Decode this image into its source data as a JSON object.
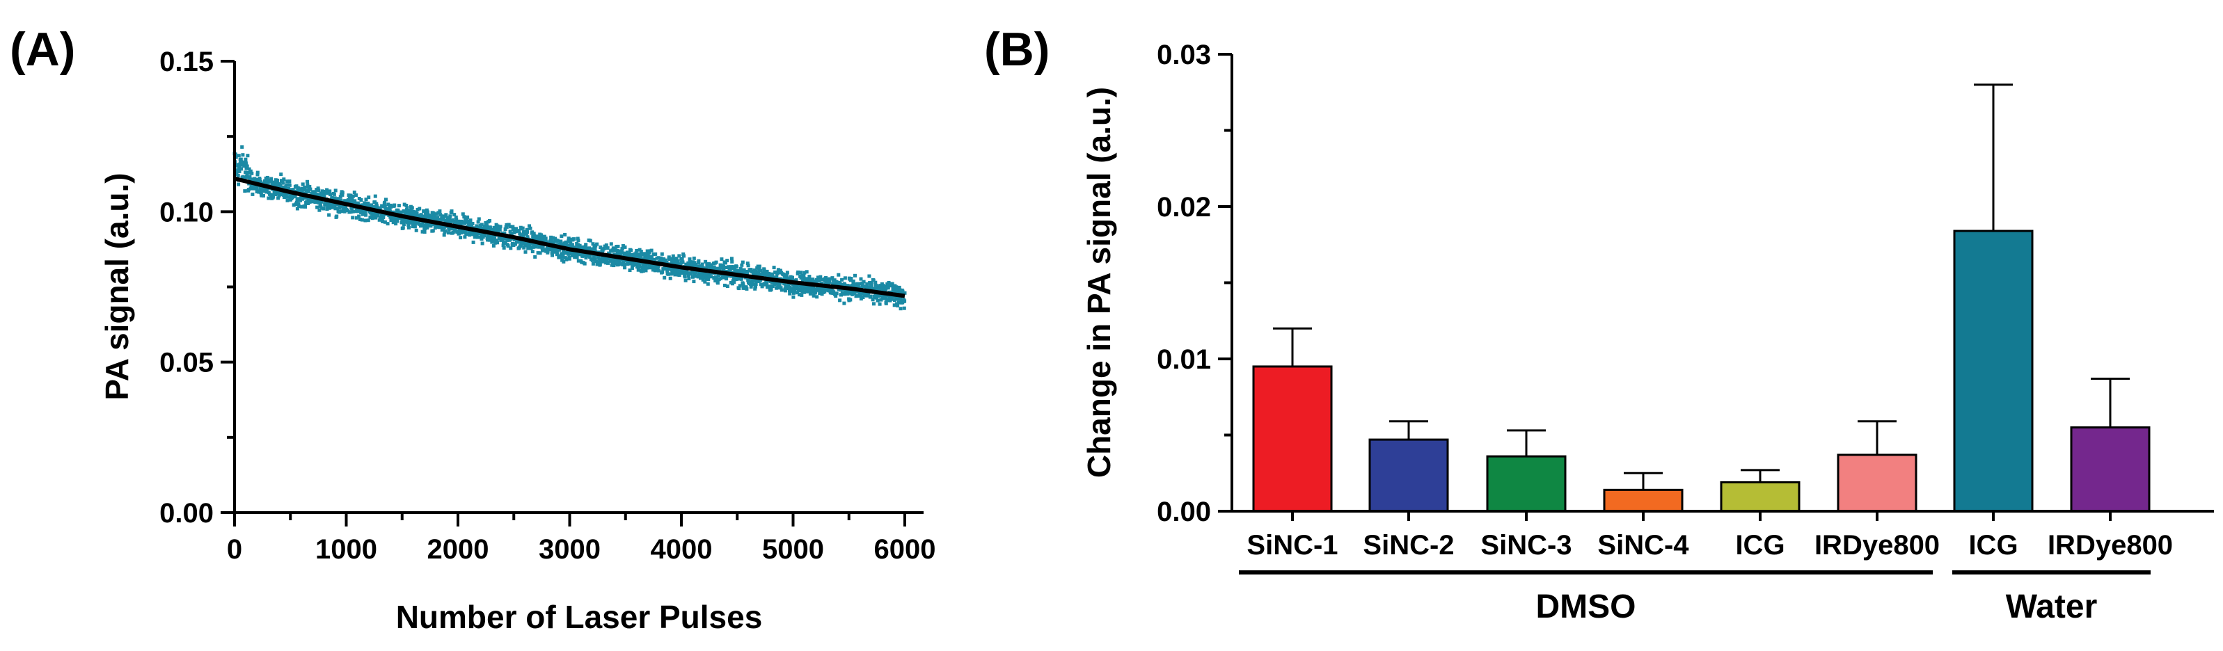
{
  "chart_data": [
    {
      "panel_label": "(A)",
      "type": "scatter",
      "xlabel": "Number of Laser Pulses",
      "ylabel": "PA signal (a.u.)",
      "xlim": [
        0,
        6000
      ],
      "ylim": [
        0.0,
        0.15
      ],
      "x_ticks": [
        "0",
        "1000",
        "2000",
        "3000",
        "4000",
        "5000",
        "6000"
      ],
      "y_ticks": [
        "0.00",
        "0.05",
        "0.10",
        "0.15"
      ],
      "point_color": "#1b8aa5",
      "fit_color": "#000000",
      "fit": {
        "model": "exponential decay",
        "x": [
          0,
          500,
          1000,
          1500,
          2000,
          2500,
          3000,
          3500,
          4000,
          4500,
          5000,
          5500,
          6000
        ],
        "y": [
          0.111,
          0.1065,
          0.1025,
          0.0985,
          0.095,
          0.0915,
          0.0875,
          0.0845,
          0.0815,
          0.079,
          0.0765,
          0.0745,
          0.072
        ]
      },
      "scatter": {
        "n_points": 6000,
        "spread": 0.0035
      }
    },
    {
      "panel_label": "(B)",
      "type": "bar",
      "ylabel": "Change in PA signal (a.u.)",
      "ylim": [
        0.0,
        0.03
      ],
      "y_ticks": [
        "0.00",
        "0.01",
        "0.02",
        "0.03"
      ],
      "categories": [
        "SiNC-1",
        "SiNC-2",
        "SiNC-3",
        "SiNC-4",
        "ICG",
        "IRDye800",
        "ICG",
        "IRDye800"
      ],
      "values": [
        0.0095,
        0.0047,
        0.0036,
        0.0014,
        0.0019,
        0.0037,
        0.0184,
        0.0055
      ],
      "errors": [
        0.0025,
        0.0012,
        0.0017,
        0.0011,
        0.0008,
        0.0022,
        0.0096,
        0.0032
      ],
      "colors": [
        "#ed1c24",
        "#2e3f97",
        "#0f8743",
        "#f26a21",
        "#b5bd35",
        "#f28080",
        "#137a92",
        "#74278d"
      ],
      "groups": [
        {
          "label": "DMSO",
          "start": 0,
          "end": 5
        },
        {
          "label": "Water",
          "start": 6,
          "end": 7
        }
      ]
    }
  ]
}
